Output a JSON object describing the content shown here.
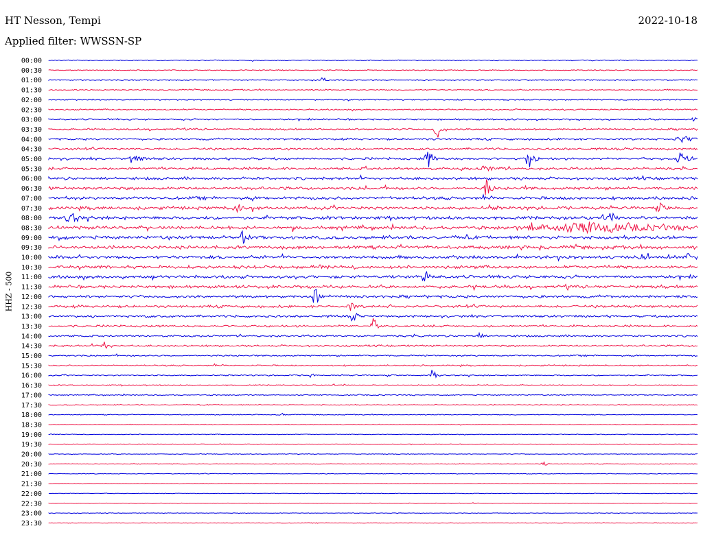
{
  "header": {
    "station": "HT Nesson, Tempi",
    "date": "2022-10-18",
    "filter": "Applied filter: WWSSN-SP"
  },
  "axis": {
    "ylabel": "HHZ - 500"
  },
  "colors": {
    "even_row": "#0000dd",
    "odd_row": "#ee1144",
    "background": "#ffffff"
  },
  "chart_data": {
    "type": "line",
    "ylabel": "HHZ - 500",
    "rows": [
      "00:00",
      "00:30",
      "01:00",
      "01:30",
      "02:00",
      "02:30",
      "03:00",
      "03:30",
      "04:00",
      "04:30",
      "05:00",
      "05:30",
      "06:00",
      "06:30",
      "07:00",
      "07:30",
      "08:00",
      "08:30",
      "09:00",
      "09:30",
      "10:00",
      "10:30",
      "11:00",
      "11:30",
      "12:00",
      "12:30",
      "13:00",
      "13:30",
      "14:00",
      "14:30",
      "15:00",
      "15:30",
      "16:00",
      "16:30",
      "17:00",
      "17:30",
      "18:00",
      "18:30",
      "19:00",
      "19:30",
      "20:00",
      "20:30",
      "21:00",
      "21:30",
      "22:00",
      "22:30",
      "23:00",
      "23:30"
    ],
    "row_minutes": 30,
    "series_color_alternation": [
      "blue",
      "red"
    ]
  }
}
